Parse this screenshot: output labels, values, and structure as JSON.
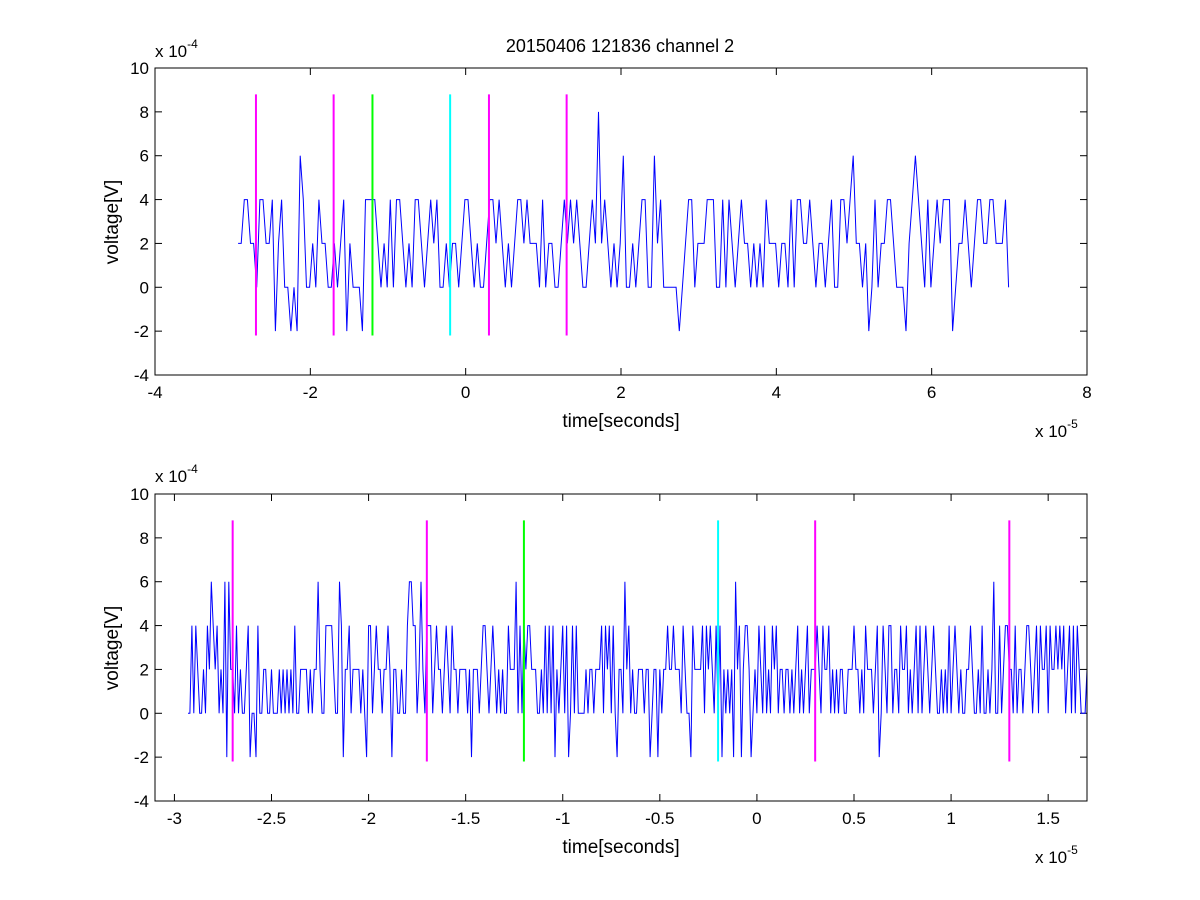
{
  "chart_data": [
    {
      "type": "line",
      "title": "20150406 121836 channel 2",
      "xlabel": "time[seconds]",
      "ylabel": "voltage[V]",
      "x_multiplier": "x 10",
      "x_multiplier_exp": "-5",
      "y_multiplier": "x 10",
      "y_multiplier_exp": "-4",
      "xlim": [
        -4,
        8
      ],
      "ylim": [
        -4,
        10
      ],
      "xticks": [
        -4,
        -2,
        0,
        2,
        4,
        6,
        8
      ],
      "xtick_labels": [
        "-4",
        "-2",
        "0",
        "2",
        "4",
        "6",
        "8"
      ],
      "yticks": [
        -4,
        -2,
        0,
        2,
        4,
        6,
        8,
        10
      ],
      "ytick_labels": [
        "-4",
        "-2",
        "0",
        "2",
        "4",
        "6",
        "8",
        "10"
      ],
      "signal": {
        "color": "#0000ff",
        "x_range": [
          -2.93,
          7.0
        ],
        "step": 0.04,
        "levels": [
          -2,
          0,
          2,
          4,
          6,
          8
        ],
        "baseline": 2
      },
      "markers": [
        {
          "x": -2.7,
          "color": "#ff00ff",
          "y_range": [
            -2.2,
            8.8
          ]
        },
        {
          "x": -1.7,
          "color": "#ff00ff",
          "y_range": [
            -2.2,
            8.8
          ]
        },
        {
          "x": -1.2,
          "color": "#00ff00",
          "y_range": [
            -2.2,
            8.8
          ]
        },
        {
          "x": -0.2,
          "color": "#00ffff",
          "y_range": [
            -2.2,
            8.8
          ]
        },
        {
          "x": 0.3,
          "color": "#ff00ff",
          "y_range": [
            -2.2,
            8.8
          ]
        },
        {
          "x": 1.3,
          "color": "#ff00ff",
          "y_range": [
            -2.2,
            8.8
          ]
        }
      ]
    },
    {
      "type": "line",
      "title": "",
      "xlabel": "time[seconds]",
      "ylabel": "voltage[V]",
      "x_multiplier": "x 10",
      "x_multiplier_exp": "-5",
      "y_multiplier": "x 10",
      "y_multiplier_exp": "-4",
      "xlim": [
        -3.1,
        1.7
      ],
      "ylim": [
        -4,
        10
      ],
      "xticks": [
        -3,
        -2.5,
        -2,
        -1.5,
        -1,
        -0.5,
        0,
        0.5,
        1,
        1.5
      ],
      "xtick_labels": [
        "-3",
        "-2.5",
        "-2",
        "-1.5",
        "-1",
        "-0.5",
        "0",
        "0.5",
        "1",
        "1.5"
      ],
      "yticks": [
        -4,
        -2,
        0,
        2,
        4,
        6,
        8,
        10
      ],
      "ytick_labels": [
        "-4",
        "-2",
        "0",
        "2",
        "4",
        "6",
        "8",
        "10"
      ],
      "signal": {
        "color": "#0000ff",
        "x_range": [
          -2.93,
          1.7
        ],
        "step": 0.01,
        "levels": [
          -2,
          0,
          2,
          4,
          6,
          8
        ],
        "baseline": 2
      },
      "markers": [
        {
          "x": -2.7,
          "color": "#ff00ff",
          "y_range": [
            -2.2,
            8.8
          ]
        },
        {
          "x": -1.7,
          "color": "#ff00ff",
          "y_range": [
            -2.2,
            8.8
          ]
        },
        {
          "x": -1.2,
          "color": "#00ff00",
          "y_range": [
            -2.2,
            8.8
          ]
        },
        {
          "x": -0.2,
          "color": "#00ffff",
          "y_range": [
            -2.2,
            8.8
          ]
        },
        {
          "x": 0.3,
          "color": "#ff00ff",
          "y_range": [
            -2.2,
            8.8
          ]
        },
        {
          "x": 1.3,
          "color": "#ff00ff",
          "y_range": [
            -2.2,
            8.8
          ]
        }
      ]
    }
  ]
}
